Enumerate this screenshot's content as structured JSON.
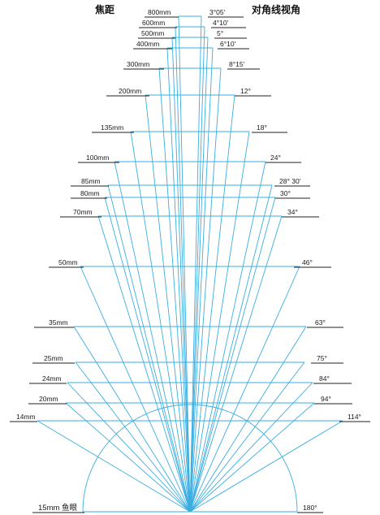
{
  "header": {
    "focal_title": "焦距",
    "angle_title": "对角线视角"
  },
  "colors": {
    "line": "#3aaee0",
    "text": "#1a1a1a",
    "underline": "#222222",
    "background": "#ffffff"
  },
  "lenses": [
    {
      "focal": "800mm",
      "angle": "3°05′"
    },
    {
      "focal": "600mm",
      "angle": "4°10′"
    },
    {
      "focal": "500mm",
      "angle": "5°"
    },
    {
      "focal": "400mm",
      "angle": "6°10′"
    },
    {
      "focal": "300mm",
      "angle": "8°15′"
    },
    {
      "focal": "200mm",
      "angle": "12°"
    },
    {
      "focal": "135mm",
      "angle": "18°"
    },
    {
      "focal": "100mm",
      "angle": "24°"
    },
    {
      "focal": "85mm",
      "angle": "28° 30′"
    },
    {
      "focal": "80mm",
      "angle": "30°"
    },
    {
      "focal": "70mm",
      "angle": "34°"
    },
    {
      "focal": "50mm",
      "angle": "46°"
    },
    {
      "focal": "35mm",
      "angle": "63°"
    },
    {
      "focal": "25mm",
      "angle": "75°"
    },
    {
      "focal": "24mm",
      "angle": "84°"
    },
    {
      "focal": "20mm",
      "angle": "94°"
    },
    {
      "focal": "14mm",
      "angle": "114°"
    },
    {
      "focal": "15mm 鱼眼",
      "angle": "180°"
    }
  ]
}
